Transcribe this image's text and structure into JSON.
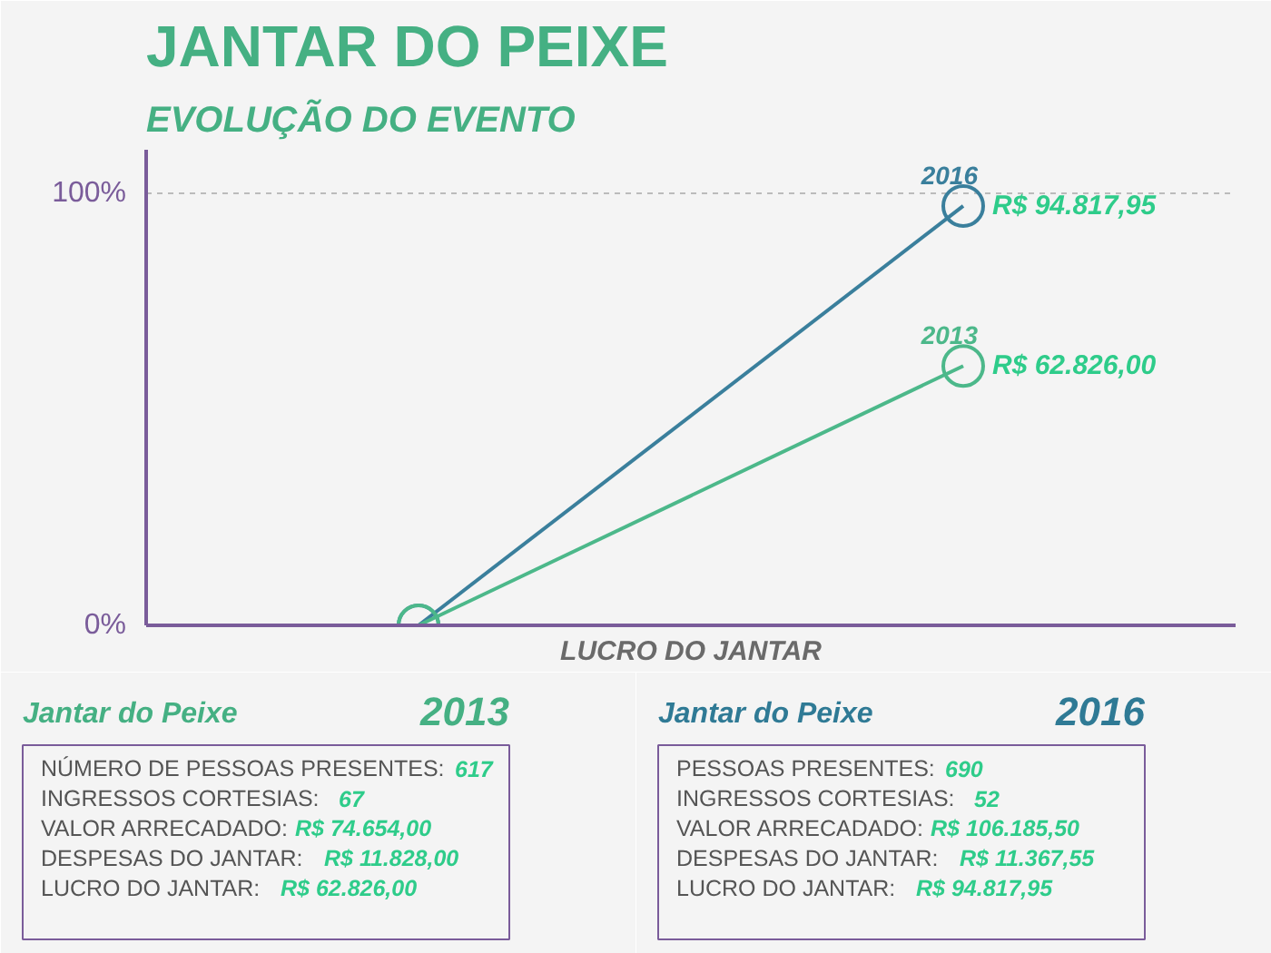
{
  "chart_data": [
    {
      "type": "line",
      "title": "JANTAR DO PEIXE",
      "subtitle": "EVOLUÇÃO DO EVENTO",
      "xlabel": "LUCRO DO JANTAR",
      "categories": [
        null,
        null
      ],
      "tick_labels": "y",
      "ylim": [
        0,
        110
      ],
      "yticks": [
        {
          "value": 0,
          "label": "0%"
        },
        {
          "value": 100,
          "label": "100%"
        }
      ],
      "series": [
        {
          "name": "2016",
          "color": "#3a7f9c",
          "values": [
            0,
            97
          ],
          "value_labels": [
            null,
            "R$ 94.817,95"
          ]
        },
        {
          "name": "2013",
          "color": "#4cb88a",
          "values": [
            0,
            60
          ],
          "value_labels": [
            null,
            "R$ 62.826,00"
          ]
        }
      ],
      "grid": "y",
      "marker": "circle",
      "line_style": "solid"
    },
    {
      "type": "other",
      "title": "Jantar do Peixe",
      "subtitle": "2013",
      "annotations": [
        "NÚMERO DE PESSOAS PRESENTES: 617",
        "INGRESSOS CORTESIAS: 67",
        "VALOR ARRECADADO: R$ 74.654,00",
        "DESPESAS DO JANTAR: R$ 11.828,00",
        "LUCRO DO JANTAR: R$ 62.826,00"
      ]
    },
    {
      "type": "other",
      "title": "Jantar do Peixe",
      "subtitle": "2016",
      "annotations": [
        "PESSOAS PRESENTES: 690",
        "INGRESSOS CORTESIAS: 52",
        "VALOR ARRECADADO: R$ 106.185,50",
        "DESPESAS DO JANTAR: R$ 11.367,55",
        "LUCRO DO JANTAR: R$ 94.817,95"
      ]
    }
  ]
}
